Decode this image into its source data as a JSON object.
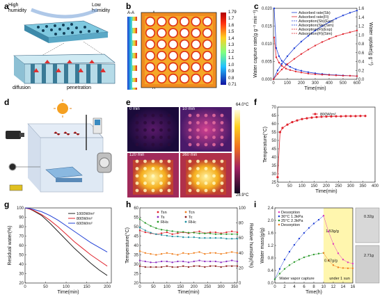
{
  "panel_labels": {
    "a": "a",
    "b": "b",
    "c": "c",
    "d": "d",
    "e": "e",
    "f": "f",
    "g": "g",
    "h": "h",
    "i": "i"
  },
  "panel_a": {
    "high_humidity": "High humidity",
    "low_humidity": "Low humidity",
    "diffusion": "diffusion",
    "penetration": "penetration"
  },
  "panel_b": {
    "section": "A-A",
    "cut_top": "A",
    "cut_bottom": "A",
    "cbar_ticks": [
      "1.79",
      "1.7",
      "1.6",
      "1.5",
      "1.4",
      "1.3",
      "1.2",
      "1.1",
      "1.0",
      "0.9",
      "0.8",
      "0.71"
    ]
  },
  "panel_e": {
    "times": [
      "0 min",
      "10 min",
      "120 min",
      "360 min"
    ],
    "tmax": "64.0°C",
    "tmin": "28.9°C"
  },
  "colors": {
    "blue": "#1f3fd6",
    "red": "#e0202a",
    "green": "#2a9a2a",
    "orange": "#f08020",
    "purple": "#8a2ac0",
    "teal": "#2090a0"
  },
  "chart_data": [
    {
      "id": "c",
      "type": "line",
      "xlabel": "Time(min)",
      "ylabel": "Water capture rate(g g⁻¹ min⁻¹)",
      "y2label": "Water uptake(g g⁻¹)",
      "xlim": [
        0,
        600
      ],
      "ylim": [
        0,
        0.02
      ],
      "y2lim": [
        0,
        1.6
      ],
      "xticks": [
        0,
        100,
        200,
        300,
        400,
        500,
        600
      ],
      "yticks": [
        "0.000",
        "0.005",
        "0.010",
        "0.015",
        "0.020"
      ],
      "y2ticks": [
        "0.0",
        "0.2",
        "0.4",
        "0.6",
        "0.8",
        "1.0",
        "1.2",
        "1.4",
        "1.6"
      ],
      "series": [
        {
          "name": "Adsorbed rate(Sb)",
          "color": "#1f3fd6",
          "axis": "left",
          "x": [
            5,
            20,
            40,
            60,
            90,
            120,
            160,
            200,
            250,
            300,
            350,
            400,
            450,
            500,
            550,
            600
          ],
          "y": [
            0.02,
            0.0088,
            0.0065,
            0.0052,
            0.0042,
            0.0035,
            0.0028,
            0.0024,
            0.002,
            0.0017,
            0.0015,
            0.0013,
            0.0012,
            0.0011,
            0.001,
            0.0009
          ]
        },
        {
          "name": "Adsorbed rate(Fl)",
          "color": "#e0202a",
          "axis": "left",
          "x": [
            5,
            20,
            40,
            60,
            90,
            120,
            160,
            200,
            250,
            300,
            350,
            400,
            450,
            500,
            550,
            600
          ],
          "y": [
            0.0118,
            0.0062,
            0.0047,
            0.0038,
            0.003,
            0.0026,
            0.0022,
            0.0019,
            0.0016,
            0.0014,
            0.0013,
            0.0012,
            0.0011,
            0.001,
            0.001,
            0.0009
          ]
        },
        {
          "name": "Adsorption(Sb)(Exp)",
          "color": "#1f3fd6",
          "axis": "right",
          "x": [
            0,
            30,
            60,
            100,
            150,
            200,
            250,
            300,
            350,
            400,
            450,
            500,
            550,
            600
          ],
          "y": [
            0,
            0.2,
            0.35,
            0.52,
            0.7,
            0.85,
            0.98,
            1.1,
            1.2,
            1.29,
            1.37,
            1.44,
            1.5,
            1.55
          ]
        },
        {
          "name": "Adsorption(Fl)(Exp)",
          "color": "#e0202a",
          "axis": "right",
          "x": [
            0,
            30,
            60,
            100,
            150,
            200,
            250,
            300,
            350,
            400,
            450,
            500,
            550,
            600
          ],
          "y": [
            0,
            0.12,
            0.22,
            0.34,
            0.46,
            0.57,
            0.67,
            0.76,
            0.84,
            0.91,
            0.97,
            1.02,
            1.06,
            1.1
          ]
        }
      ]
    },
    {
      "id": "f",
      "type": "line",
      "legend": [
        "800W/m²"
      ],
      "xlabel": "Time(min)",
      "ylabel": "Temperature(°C)",
      "xlim": [
        0,
        400
      ],
      "ylim": [
        25,
        70
      ],
      "xticks": [
        0,
        50,
        100,
        150,
        200,
        250,
        300,
        350,
        400
      ],
      "yticks": [
        25,
        30,
        35,
        40,
        45,
        50,
        55,
        60,
        65,
        70
      ],
      "series": [
        {
          "name": "800W/m²",
          "color": "#e0202a",
          "x": [
            0,
            10,
            20,
            40,
            60,
            80,
            100,
            120,
            140,
            160,
            180,
            200,
            220,
            240,
            260,
            280,
            300,
            320,
            340,
            360
          ],
          "y": [
            28,
            55,
            57.5,
            59.5,
            61,
            62,
            62.8,
            63.3,
            63.7,
            64,
            64.2,
            64.3,
            64.4,
            64.5,
            64.5,
            64.6,
            64.6,
            64.6,
            64.7,
            64.7
          ]
        }
      ]
    },
    {
      "id": "g",
      "type": "line",
      "xlabel": "Time(min)",
      "ylabel": "Residual water(%)",
      "xlim": [
        0,
        210
      ],
      "ylim": [
        20,
        100
      ],
      "xticks": [
        0,
        50,
        100,
        150,
        200
      ],
      "yticks": [
        20,
        30,
        40,
        50,
        60,
        70,
        80,
        90,
        100
      ],
      "series": [
        {
          "name": "1000W/m²",
          "color": "#222222",
          "x": [
            0,
            10,
            20,
            40,
            60,
            80,
            100,
            120,
            140,
            160,
            180,
            200
          ],
          "y": [
            100,
            99,
            97,
            92,
            84,
            75,
            66,
            57,
            49,
            41,
            34,
            28
          ]
        },
        {
          "name": "800W/m²",
          "color": "#e0202a",
          "x": [
            0,
            10,
            20,
            40,
            60,
            80,
            100,
            120,
            140,
            160,
            180,
            200
          ],
          "y": [
            100,
            99,
            97.5,
            93,
            87,
            80,
            72,
            64,
            57,
            50,
            44,
            38
          ]
        },
        {
          "name": "600W/m²",
          "color": "#1f3fd6",
          "x": [
            0,
            10,
            20,
            40,
            60,
            80,
            100,
            120,
            140,
            160,
            180,
            200
          ],
          "y": [
            100,
            99.5,
            98.5,
            96,
            92,
            87,
            81,
            75,
            69,
            63,
            58,
            53
          ]
        }
      ]
    },
    {
      "id": "h",
      "type": "scatter",
      "xlabel": "Time(min)",
      "ylabel": "Temperature(°C)",
      "y2label": "Relative humidity(%)",
      "xlim": [
        0,
        360
      ],
      "ylim": [
        20,
        60
      ],
      "y2lim": [
        0,
        100
      ],
      "xticks": [
        0,
        50,
        100,
        150,
        200,
        250,
        300,
        350
      ],
      "yticks": [
        20,
        25,
        30,
        35,
        40,
        45,
        50,
        55,
        60
      ],
      "y2ticks": [
        0,
        20,
        40,
        60,
        80,
        100
      ],
      "series": [
        {
          "name": "Tsn",
          "color": "#e0202a",
          "axis": "left",
          "x": [
            0,
            20,
            40,
            60,
            80,
            100,
            120,
            140,
            160,
            180,
            200,
            220,
            240,
            260,
            280,
            300,
            320,
            340,
            360
          ],
          "y": [
            48,
            47,
            46.5,
            46,
            46.5,
            47,
            46,
            46.5,
            47,
            46.5,
            47,
            47.5,
            46.5,
            47,
            47,
            46.5,
            47,
            47.5,
            47
          ]
        },
        {
          "name": "Tcn",
          "color": "#f08020",
          "axis": "left",
          "x": [
            0,
            20,
            40,
            60,
            80,
            100,
            120,
            140,
            160,
            180,
            200,
            220,
            240,
            260,
            280,
            300,
            320,
            340,
            360
          ],
          "y": [
            37,
            36,
            35.5,
            35,
            35.5,
            36,
            35.5,
            35,
            36,
            35.5,
            36,
            36.5,
            35.5,
            36,
            36,
            35.5,
            36,
            36.5,
            36
          ]
        },
        {
          "name": "Ts",
          "color": "#8a2ac0",
          "axis": "left",
          "x": [
            0,
            20,
            40,
            60,
            80,
            100,
            120,
            140,
            160,
            180,
            200,
            220,
            240,
            260,
            280,
            300,
            320,
            340,
            360
          ],
          "y": [
            32,
            31.5,
            31,
            31,
            31.5,
            31.5,
            31,
            31.5,
            31.5,
            31,
            31.5,
            32,
            31.5,
            31.5,
            31.5,
            31,
            31.5,
            32,
            31.5
          ]
        },
        {
          "name": "Tc",
          "color": "#8a1a1a",
          "axis": "left",
          "x": [
            0,
            20,
            40,
            60,
            80,
            100,
            120,
            140,
            160,
            180,
            200,
            220,
            240,
            260,
            280,
            300,
            320,
            340,
            360
          ],
          "y": [
            29,
            28.5,
            28.5,
            28.5,
            28.5,
            29,
            28.5,
            28.5,
            29,
            28.5,
            29,
            29,
            28.5,
            29,
            29,
            28.5,
            29,
            29,
            29
          ]
        },
        {
          "name": "RHs",
          "color": "#2a9a2a",
          "axis": "right",
          "x": [
            0,
            20,
            40,
            60,
            80,
            100,
            120,
            140,
            160,
            180,
            200,
            220,
            240,
            260,
            280,
            300,
            320,
            340,
            360
          ],
          "y": [
            85,
            80,
            76,
            73,
            71,
            70,
            69,
            68,
            68,
            67,
            67,
            66,
            66,
            66,
            65,
            65,
            65,
            65,
            65
          ]
        },
        {
          "name": "RHc",
          "color": "#2090a0",
          "axis": "right",
          "x": [
            0,
            20,
            40,
            60,
            80,
            100,
            120,
            140,
            160,
            180,
            200,
            220,
            240,
            260,
            280,
            300,
            320,
            340,
            360
          ],
          "y": [
            74,
            70,
            67,
            65,
            64,
            63,
            62,
            62,
            61,
            61,
            61,
            60,
            60,
            60,
            60,
            60,
            59,
            59,
            59
          ]
        }
      ]
    },
    {
      "id": "i",
      "type": "scatter",
      "xlabel": "Time(h)",
      "ylabel": "Water mass(g/g)",
      "xlim": [
        0,
        16
      ],
      "ylim": [
        0,
        2.4
      ],
      "xticks": [
        0,
        2,
        4,
        6,
        8,
        10,
        12,
        14,
        16
      ],
      "yticks": [
        "0.0",
        "0.4",
        "0.8",
        "1.2",
        "1.6",
        "2.0",
        "2.4"
      ],
      "legend": [
        "Desorption",
        "30°C 1.3kPa",
        "25°C 2.3kPa",
        "Desorption"
      ],
      "annotations": [
        "1.53g/g",
        "0.47g/g",
        "0.32g",
        "2.71g",
        "Water vapor capture",
        "under 1 sun",
        "Desorption"
      ],
      "series": [
        {
          "name": "30°C 1.3kPa",
          "color": "#1f3fd6",
          "x": [
            0,
            1,
            2,
            3,
            4,
            5,
            6,
            7,
            8,
            9,
            10
          ],
          "y": [
            0.12,
            0.45,
            0.75,
            1.0,
            1.22,
            1.42,
            1.6,
            1.76,
            1.9,
            2.02,
            2.15
          ]
        },
        {
          "name": "Desorption",
          "color": "#e040c0",
          "x": [
            10,
            11,
            12,
            13,
            14,
            15,
            16
          ],
          "y": [
            2.15,
            1.65,
            1.25,
            0.95,
            0.75,
            0.66,
            0.62
          ]
        },
        {
          "name": "25°C 2.3kPa",
          "color": "#2a9a2a",
          "x": [
            0,
            1,
            2,
            3,
            4,
            5,
            6,
            7,
            8,
            9,
            10
          ],
          "y": [
            0.12,
            0.3,
            0.45,
            0.57,
            0.67,
            0.75,
            0.82,
            0.87,
            0.91,
            0.94,
            0.96
          ]
        },
        {
          "name": "Desorption",
          "color": "#f08020",
          "x": [
            10,
            11,
            12,
            13,
            14,
            15,
            16
          ],
          "y": [
            0.96,
            0.72,
            0.57,
            0.5,
            0.48,
            0.47,
            0.47
          ]
        }
      ]
    }
  ]
}
